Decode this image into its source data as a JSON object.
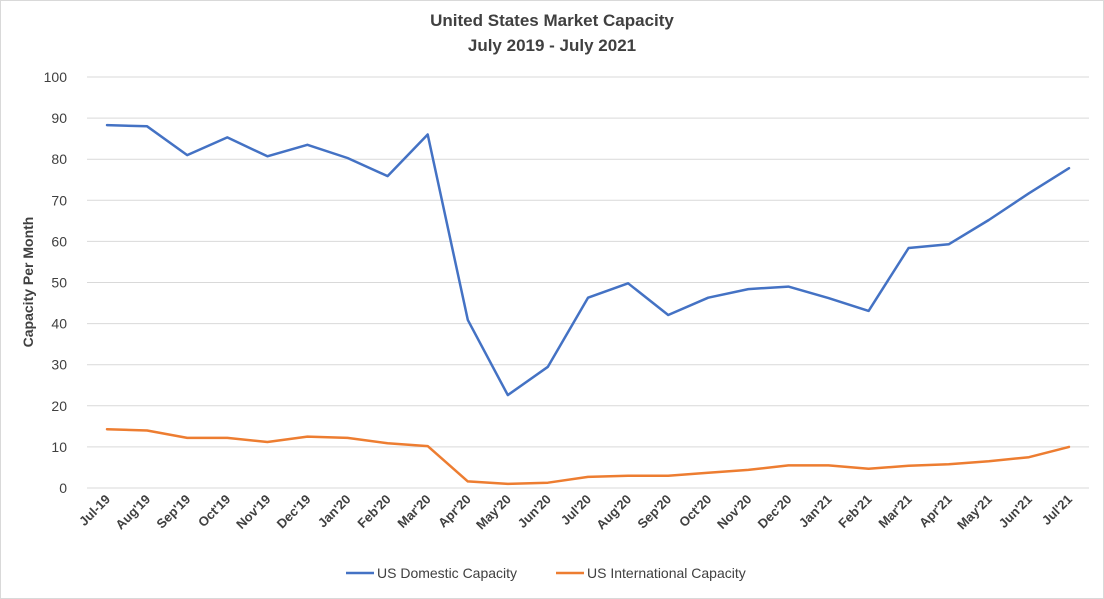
{
  "chart_data": {
    "type": "line",
    "title": "United States Market Capacity",
    "subtitle": "July 2019 - July 2021",
    "xlabel": "",
    "ylabel": "Capacity Per Month",
    "ylim": [
      0,
      100
    ],
    "yticks": [
      0,
      10,
      20,
      30,
      40,
      50,
      60,
      70,
      80,
      90,
      100
    ],
    "grid": true,
    "legend_position": "bottom",
    "categories": [
      "Jul-19",
      "Aug'19",
      "Sep'19",
      "Oct'19",
      "Nov'19",
      "Dec'19",
      "Jan'20",
      "Feb'20",
      "Mar'20",
      "Apr'20",
      "May'20",
      "Jun'20",
      "Jul'20",
      "Aug'20",
      "Sep'20",
      "Oct'20",
      "Nov'20",
      "Dec'20",
      "Jan'21",
      "Feb'21",
      "Mar'21",
      "Apr'21",
      "May'21",
      "Jun'21",
      "Jul'21"
    ],
    "series": [
      {
        "name": "US Domestic Capacity",
        "color": "#4472c4",
        "values": [
          88.3,
          88.0,
          81.0,
          85.3,
          80.7,
          83.5,
          80.3,
          75.9,
          86.0,
          40.9,
          22.6,
          29.5,
          46.3,
          49.8,
          42.1,
          46.3,
          48.4,
          49.0,
          46.2,
          43.1,
          58.4,
          59.3,
          65.2,
          71.7,
          77.8
        ]
      },
      {
        "name": "US International Capacity",
        "color": "#ed7d31",
        "values": [
          14.3,
          14.0,
          12.2,
          12.2,
          11.2,
          12.5,
          12.2,
          10.9,
          10.2,
          1.6,
          1.0,
          1.3,
          2.7,
          3.0,
          3.0,
          3.7,
          4.4,
          5.5,
          5.5,
          4.7,
          5.4,
          5.8,
          6.5,
          7.5,
          10.0
        ]
      }
    ]
  }
}
